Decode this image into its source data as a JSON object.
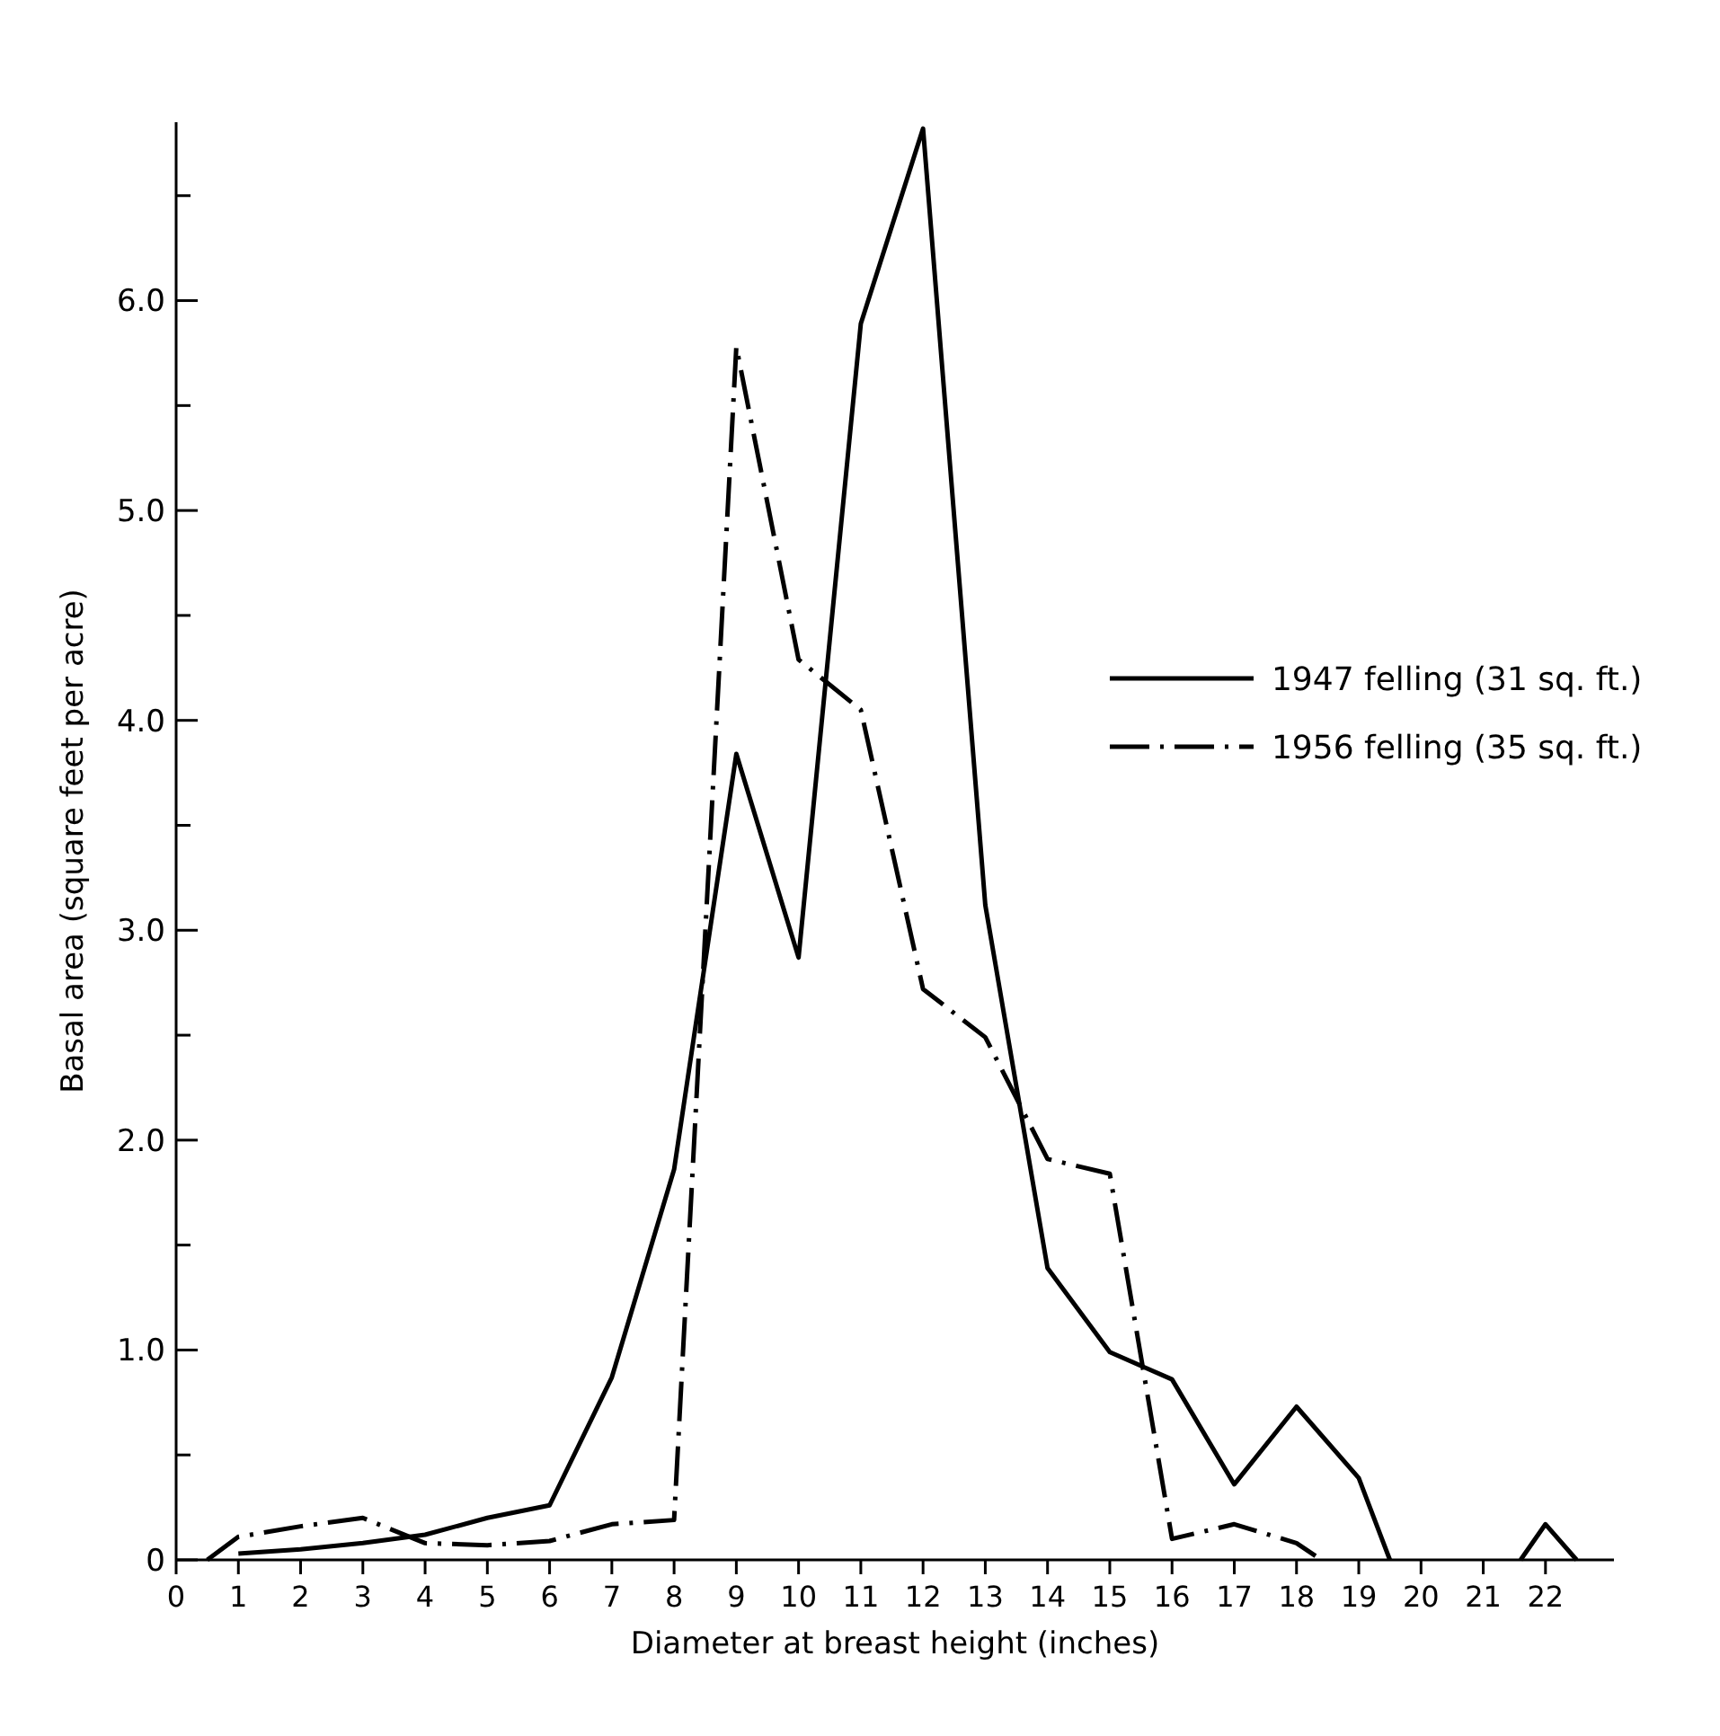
{
  "chart_data": {
    "type": "line",
    "xlabel": "Diameter at breast height (inches)",
    "ylabel": "Basal area (square feet per acre)",
    "xlim": [
      0,
      23.1
    ],
    "ylim": [
      0,
      6.85
    ],
    "xticks": [
      0,
      1,
      2,
      3,
      4,
      5,
      6,
      7,
      8,
      9,
      10,
      11,
      12,
      13,
      14,
      15,
      16,
      17,
      18,
      19,
      20,
      21,
      22
    ],
    "yticks": [
      {
        "value": 0,
        "label": "0"
      },
      {
        "value": 0.5,
        "label": null
      },
      {
        "value": 1,
        "label": "1.0"
      },
      {
        "value": 1.5,
        "label": null
      },
      {
        "value": 2,
        "label": "2.0"
      },
      {
        "value": 2.5,
        "label": null
      },
      {
        "value": 3,
        "label": "3.0"
      },
      {
        "value": 3.5,
        "label": null
      },
      {
        "value": 4,
        "label": "4.0"
      },
      {
        "value": 4.5,
        "label": null
      },
      {
        "value": 5,
        "label": "5.0"
      },
      {
        "value": 5.5,
        "label": null
      },
      {
        "value": 6,
        "label": "6.0"
      },
      {
        "value": 6.5,
        "label": null
      }
    ],
    "grid": false,
    "legend": "right",
    "series": [
      {
        "name": "1947 felling (31 sq. ft.)",
        "color": "#000000",
        "line_style": "solid",
        "x": [
          1,
          2,
          3,
          4,
          5,
          6,
          7,
          8,
          9,
          10,
          11,
          12,
          13,
          14,
          15,
          16,
          17,
          18,
          19,
          19.5,
          20.5,
          21.6,
          22,
          22.5
        ],
        "values": [
          0.03,
          0.05,
          0.08,
          0.12,
          0.2,
          0.26,
          0.87,
          1.86,
          3.84,
          2.87,
          5.89,
          6.82,
          3.12,
          1.39,
          0.99,
          0.86,
          0.36,
          0.73,
          0.39,
          0,
          null,
          0,
          0.17,
          0
        ]
      },
      {
        "name": "1956 felling (35 sq. ft.)",
        "color": "#000000",
        "line_style": "dashdot",
        "x": [
          0.5,
          1,
          2,
          3,
          4,
          5,
          6,
          7,
          8,
          9,
          10,
          11,
          12,
          13,
          14,
          15,
          16,
          17,
          18,
          18.4
        ],
        "values": [
          0,
          0.11,
          0.16,
          0.2,
          0.08,
          0.07,
          0.09,
          0.17,
          0.19,
          5.78,
          4.29,
          4.05,
          2.72,
          2.49,
          1.91,
          1.84,
          0.1,
          0.17,
          0.08,
          0
        ]
      }
    ]
  }
}
